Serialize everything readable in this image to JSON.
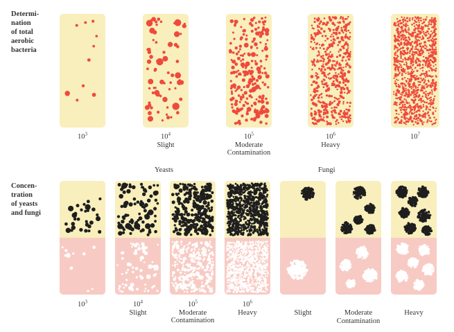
{
  "rows": {
    "aerobic_label": [
      "Determi-",
      "nation",
      "of total",
      "aerobic",
      "bacteria"
    ],
    "yeasts_label": [
      "Concen-",
      "tration",
      "of yeasts",
      "and fungi"
    ]
  },
  "aerobic_panels": [
    {
      "base": "10",
      "exp": "3",
      "desc1": "",
      "desc2": ""
    },
    {
      "base": "10",
      "exp": "4",
      "desc1": "Slight",
      "desc2": ""
    },
    {
      "base": "10",
      "exp": "5",
      "desc1": "Moderate",
      "desc2": "Contamination"
    },
    {
      "base": "10",
      "exp": "6",
      "desc1": "Heavy",
      "desc2": ""
    },
    {
      "base": "10",
      "exp": "7",
      "desc1": "",
      "desc2": ""
    }
  ],
  "groups": {
    "yeasts": "Yeasts",
    "fungi": "Fungi"
  },
  "yeast_panels": [
    {
      "base": "10",
      "exp": "3",
      "desc1": "",
      "desc2": ""
    },
    {
      "base": "10",
      "exp": "4",
      "desc1": "Slight",
      "desc2": ""
    },
    {
      "base": "10",
      "exp": "5",
      "desc1": "Moderate",
      "desc2": "Contamination"
    },
    {
      "base": "10",
      "exp": "6",
      "desc1": "Heavy",
      "desc2": ""
    }
  ],
  "fungi_panels": [
    {
      "base": "",
      "exp": "",
      "desc1": "Slight",
      "desc2": ""
    },
    {
      "base": "",
      "exp": "",
      "desc1": "Moderate",
      "desc2": "Contamination"
    },
    {
      "base": "",
      "exp": "",
      "desc1": "Heavy",
      "desc2": ""
    }
  ],
  "colors": {
    "cream": "#f8efbc",
    "pink": "#f7cbc4",
    "red_dot": "#ee4a3c",
    "black_dot": "#1e1e1e",
    "white_dot": "#ffffff"
  }
}
